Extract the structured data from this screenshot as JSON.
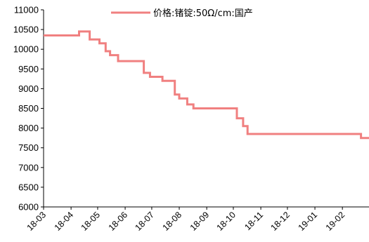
{
  "chart_data": {
    "type": "line",
    "title": "",
    "xlabel": "",
    "ylabel": "",
    "ylim": [
      6000,
      11000
    ],
    "y_ticks": [
      6000,
      6500,
      7000,
      7500,
      8000,
      8500,
      9000,
      9500,
      10000,
      10500,
      11000
    ],
    "x_tick_labels": [
      "18-03",
      "18-04",
      "18-05",
      "18-06",
      "18-07",
      "18-08",
      "18-09",
      "18-10",
      "18-11",
      "18-12",
      "19-01",
      "19-02"
    ],
    "x_range": [
      "2018-03-01",
      "2019-03-03"
    ],
    "grid": false,
    "legend_position": "top-center",
    "series": [
      {
        "name": "价格:锗锭:50Ω/cm:国产",
        "color": "#f08080",
        "points": [
          [
            "2018-03-01",
            10350
          ],
          [
            "2018-04-10",
            10350
          ],
          [
            "2018-04-10",
            10450
          ],
          [
            "2018-04-22",
            10450
          ],
          [
            "2018-04-22",
            10250
          ],
          [
            "2018-05-03",
            10250
          ],
          [
            "2018-05-03",
            10150
          ],
          [
            "2018-05-10",
            10150
          ],
          [
            "2018-05-10",
            9950
          ],
          [
            "2018-05-15",
            9950
          ],
          [
            "2018-05-15",
            9850
          ],
          [
            "2018-05-24",
            9850
          ],
          [
            "2018-05-24",
            9700
          ],
          [
            "2018-06-22",
            9700
          ],
          [
            "2018-06-22",
            9400
          ],
          [
            "2018-06-29",
            9400
          ],
          [
            "2018-06-29",
            9300
          ],
          [
            "2018-07-13",
            9300
          ],
          [
            "2018-07-13",
            9200
          ],
          [
            "2018-07-27",
            9200
          ],
          [
            "2018-07-27",
            8850
          ],
          [
            "2018-08-01",
            8850
          ],
          [
            "2018-08-01",
            8750
          ],
          [
            "2018-08-10",
            8750
          ],
          [
            "2018-08-10",
            8600
          ],
          [
            "2018-08-17",
            8600
          ],
          [
            "2018-08-17",
            8500
          ],
          [
            "2018-10-05",
            8500
          ],
          [
            "2018-10-05",
            8250
          ],
          [
            "2018-10-12",
            8250
          ],
          [
            "2018-10-12",
            8050
          ],
          [
            "2018-10-17",
            8050
          ],
          [
            "2018-10-17",
            7850
          ],
          [
            "2019-02-22",
            7850
          ],
          [
            "2019-02-22",
            7750
          ],
          [
            "2019-03-03",
            7750
          ]
        ]
      }
    ]
  }
}
